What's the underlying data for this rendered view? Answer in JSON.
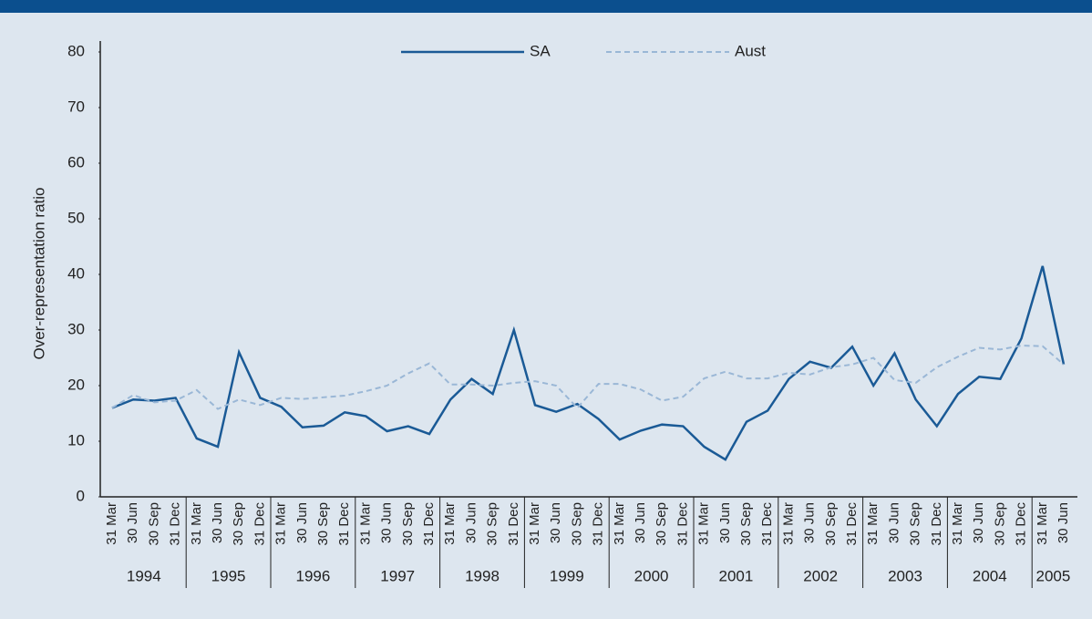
{
  "chart_data": {
    "type": "line",
    "ylabel": "Over-representation ratio",
    "categories": [
      "31 Mar",
      "30 Jun",
      "30 Sep",
      "31 Dec",
      "31 Mar",
      "30 Jun",
      "30 Sep",
      "31 Dec",
      "31 Mar",
      "30 Jun",
      "30 Sep",
      "31 Dec",
      "31 Mar",
      "30 Jun",
      "30 Sep",
      "31 Dec",
      "31 Mar",
      "30 Jun",
      "30 Sep",
      "31 Dec",
      "31 Mar",
      "30 Jun",
      "30 Sep",
      "31 Dec",
      "31 Mar",
      "30 Jun",
      "30 Sep",
      "31 Dec",
      "31 Mar",
      "30 Jun",
      "30 Sep",
      "31 Dec",
      "31 Mar",
      "30 Jun",
      "30 Sep",
      "31 Dec",
      "31 Mar",
      "30 Jun",
      "30 Sep",
      "31 Dec",
      "31 Mar",
      "30 Jun",
      "30 Sep",
      "31 Dec",
      "31 Mar",
      "30 Jun"
    ],
    "year_groups": [
      "1994",
      "1995",
      "1996",
      "1997",
      "1998",
      "1999",
      "2000",
      "2001",
      "2002",
      "2003",
      "2004",
      "2005"
    ],
    "series": [
      {
        "name": "SA",
        "color": "#1a5a96",
        "dashed": false,
        "values": [
          16,
          17.5,
          17.3,
          17.8,
          10.5,
          9,
          26,
          17.8,
          16.2,
          12.5,
          12.8,
          15.2,
          14.5,
          11.8,
          12.7,
          11.3,
          17.5,
          21.2,
          18.5,
          30,
          16.5,
          15.3,
          16.7,
          14,
          10.3,
          11.9,
          13,
          12.7,
          9,
          6.7,
          13.5,
          15.5,
          21.2,
          24.3,
          23.2,
          27,
          20,
          25.8,
          17.5,
          12.7,
          18.5,
          21.6,
          21.2,
          28.5,
          41.5,
          23.8
        ]
      },
      {
        "name": "Aust",
        "color": "#9ab7d6",
        "dashed": true,
        "values": [
          16,
          18.3,
          17,
          17.3,
          19.2,
          15.8,
          17.5,
          16.5,
          17.8,
          17.6,
          17.9,
          18.2,
          19,
          20,
          22.2,
          24,
          20.2,
          20.2,
          20,
          20.5,
          20.8,
          20,
          16,
          20.3,
          20.3,
          19.3,
          17.3,
          18,
          21.3,
          22.5,
          21.3,
          21.3,
          22.3,
          22,
          23.3,
          23.8,
          25,
          21,
          20.5,
          23.3,
          25.2,
          26.8,
          26.5,
          27.2,
          27.1,
          23.8
        ]
      }
    ],
    "ylim": [
      0,
      80
    ],
    "yticks": [
      0,
      10,
      20,
      30,
      40,
      50,
      60,
      70,
      80
    ],
    "grid": false,
    "legend": "top"
  }
}
